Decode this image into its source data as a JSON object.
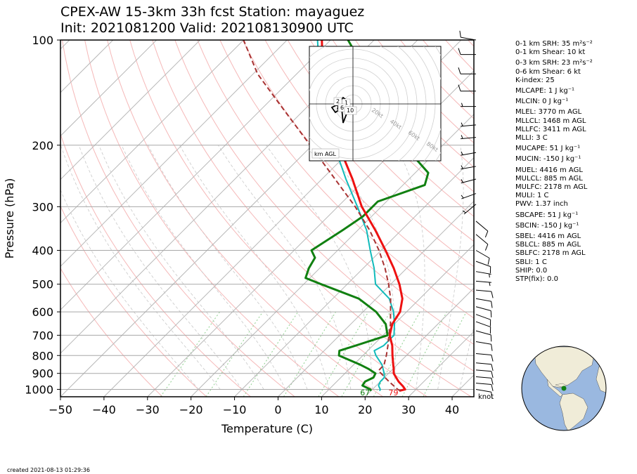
{
  "title_line1": "CPEX-AW 15-3km  33h fcst  Station: mayaguez",
  "title_line2": "Init: 2021081200  Valid: 202108130900 UTC",
  "created": "created 2021-08-13 01:29:36",
  "knot_label": "knot",
  "indices": [
    {
      "key": "srh01",
      "text": "0-1 km SRH: 35 m²s⁻²"
    },
    {
      "key": "shear01",
      "text": "0-1 km Shear: 10 kt"
    },
    {
      "key": "srh03",
      "text": "0-3 km SRH: 23 m²s⁻²",
      "gap": true
    },
    {
      "key": "shear06",
      "text": "0-6 km Shear: 6 kt"
    },
    {
      "key": "kindex",
      "text": "K-index: 25"
    },
    {
      "key": "mlcape",
      "text": "MLCAPE: 1 J kg⁻¹",
      "gap": true
    },
    {
      "key": "mlcin",
      "text": "MLCIN: 0 J kg⁻¹",
      "gap": true
    },
    {
      "key": "mlel",
      "text": "MLEL: 3770 m AGL",
      "gap": true
    },
    {
      "key": "mllcl",
      "text": "MLLCL: 1468 m AGL"
    },
    {
      "key": "mllfc",
      "text": "MLLFC: 3411 m AGL"
    },
    {
      "key": "mlli",
      "text": "MLLI: 3 C"
    },
    {
      "key": "mucape",
      "text": "MUCAPE: 51 J kg⁻¹",
      "gap": true
    },
    {
      "key": "mucin",
      "text": "MUCIN: -150 J kg⁻¹",
      "gap": true
    },
    {
      "key": "muel",
      "text": "MUEL: 4416 m AGL",
      "gap": true
    },
    {
      "key": "mulcl",
      "text": "MULCL: 885 m AGL"
    },
    {
      "key": "mulfc",
      "text": "MULFC: 2178 m AGL"
    },
    {
      "key": "muli",
      "text": "MULI: 1 C"
    },
    {
      "key": "pwv",
      "text": "PWV: 1.37 inch"
    },
    {
      "key": "sbcape",
      "text": "SBCAPE: 51 J kg⁻¹",
      "gap": true
    },
    {
      "key": "sbcin",
      "text": "SBCIN: -150 J kg⁻¹",
      "gap": true
    },
    {
      "key": "sbel",
      "text": "SBEL: 4416 m AGL",
      "gap": true
    },
    {
      "key": "sblcl",
      "text": "SBLCL: 885 m AGL"
    },
    {
      "key": "sblfc",
      "text": "SBLFC: 2178 m AGL"
    },
    {
      "key": "sbli",
      "text": "SBLI: 1 C"
    },
    {
      "key": "ship",
      "text": "SHIP: 0.0"
    },
    {
      "key": "stp",
      "text": "STP(fix): 0.0"
    }
  ],
  "colors": {
    "temperature": "#ee1111",
    "dewpoint": "#118011",
    "wetbulb": "#11bbbb",
    "parcel": "#a83232",
    "isobar": "#a8a8a8",
    "isotherm": "#b8b8b8",
    "dry_adiabat": "#f5b8b8",
    "moist_adiabat": "#c8c8c8",
    "mixing_ratio": "#8fd08f",
    "ocean": "#9ab8e0",
    "land": "#f0ecd8"
  },
  "chart_data": {
    "type": "line",
    "subtype": "skew-T log-p",
    "xlabel": "Temperature (C)",
    "ylabel": "Pressure (hPa)",
    "xlim": [
      -50,
      45
    ],
    "ylim": [
      1050,
      100
    ],
    "y_scale": "log",
    "x_ticks": [
      -50,
      -40,
      -30,
      -20,
      -10,
      0,
      10,
      20,
      30,
      40
    ],
    "x_tick_labels": [
      "−50",
      "−40",
      "−30",
      "−20",
      "−10",
      "0",
      "10",
      "20",
      "30",
      "40"
    ],
    "y_ticks": [
      100,
      200,
      300,
      400,
      500,
      600,
      700,
      800,
      900,
      1000
    ],
    "series": [
      {
        "key": "temperature",
        "points": [
          [
            1010,
            26.5
          ],
          [
            1000,
            27.5
          ],
          [
            980,
            26.3
          ],
          [
            950,
            24.2
          ],
          [
            925,
            22.7
          ],
          [
            900,
            21.2
          ],
          [
            870,
            20.0
          ],
          [
            850,
            19.1
          ],
          [
            800,
            16.8
          ],
          [
            750,
            14.5
          ],
          [
            700,
            11.5
          ],
          [
            650,
            9.5
          ],
          [
            600,
            8.5
          ],
          [
            550,
            6.0
          ],
          [
            500,
            2.0
          ],
          [
            450,
            -3.0
          ],
          [
            400,
            -9.0
          ],
          [
            350,
            -16.0
          ],
          [
            300,
            -24.5
          ],
          [
            250,
            -33.0
          ],
          [
            200,
            -44.0
          ],
          [
            175,
            -50.0
          ],
          [
            150,
            -57.0
          ],
          [
            125,
            -64.0
          ],
          [
            100,
            -72.0
          ]
        ]
      },
      {
        "key": "dewpoint",
        "points": [
          [
            1010,
            20.0
          ],
          [
            1000,
            19.5
          ],
          [
            975,
            16.8
          ],
          [
            950,
            16.5
          ],
          [
            925,
            17.5
          ],
          [
            900,
            17.0
          ],
          [
            875,
            14.5
          ],
          [
            850,
            11.5
          ],
          [
            800,
            4.5
          ],
          [
            775,
            3.5
          ],
          [
            750,
            6.0
          ],
          [
            700,
            11.0
          ],
          [
            650,
            8.0
          ],
          [
            600,
            3.0
          ],
          [
            550,
            -4.0
          ],
          [
            500,
            -16.0
          ],
          [
            480,
            -21.0
          ],
          [
            450,
            -22.5
          ],
          [
            420,
            -23.5
          ],
          [
            400,
            -26.0
          ],
          [
            350,
            -23.5
          ],
          [
            320,
            -22.0
          ],
          [
            290,
            -22.0
          ],
          [
            260,
            -15.0
          ],
          [
            240,
            -17.0
          ],
          [
            200,
            -29.0
          ],
          [
            180,
            -33.5
          ],
          [
            160,
            -38.0
          ],
          [
            150,
            -40.5
          ],
          [
            140,
            -44.0
          ],
          [
            130,
            -50.0
          ],
          [
            120,
            -56.0
          ],
          [
            100,
            -66.0
          ]
        ]
      },
      {
        "key": "wetbulb",
        "points": [
          [
            1010,
            22.0
          ],
          [
            1000,
            21.8
          ],
          [
            975,
            20.5
          ],
          [
            950,
            20.0
          ],
          [
            925,
            20.0
          ],
          [
            900,
            19.0
          ],
          [
            850,
            16.5
          ],
          [
            800,
            13.0
          ],
          [
            775,
            11.5
          ],
          [
            750,
            12.5
          ],
          [
            700,
            12.5
          ],
          [
            650,
            10.0
          ],
          [
            600,
            7.0
          ],
          [
            550,
            3.0
          ],
          [
            500,
            -3.5
          ],
          [
            450,
            -7.5
          ],
          [
            400,
            -12.5
          ],
          [
            350,
            -18.0
          ],
          [
            300,
            -25.5
          ],
          [
            250,
            -34.5
          ],
          [
            200,
            -45.0
          ],
          [
            150,
            -58.0
          ],
          [
            100,
            -73.0
          ]
        ]
      },
      {
        "key": "parcel",
        "points": [
          [
            1010,
            26.8
          ],
          [
            1000,
            25.8
          ],
          [
            950,
            22.0
          ],
          [
            900,
            18.3
          ],
          [
            885,
            17.1
          ],
          [
            850,
            17.0
          ],
          [
            800,
            15.4
          ],
          [
            750,
            13.5
          ],
          [
            700,
            11.3
          ],
          [
            650,
            9.1
          ],
          [
            600,
            6.3
          ],
          [
            550,
            3.3
          ],
          [
            500,
            -0.5
          ],
          [
            450,
            -5.0
          ],
          [
            400,
            -10.5
          ],
          [
            350,
            -17.3
          ],
          [
            300,
            -26.0
          ],
          [
            250,
            -37.0
          ],
          [
            200,
            -50.5
          ],
          [
            150,
            -68.0
          ],
          [
            125,
            -79.0
          ],
          [
            100,
            -90.0
          ]
        ]
      }
    ],
    "surface_labels": [
      {
        "key": "dewpoint",
        "text": "67",
        "t": 20.0
      },
      {
        "key": "temperature",
        "text": "79",
        "t": 26.5
      }
    ],
    "wind_barbs": [
      {
        "p": 100,
        "speed": 10,
        "dir": 280
      },
      {
        "p": 110,
        "speed": 10,
        "dir": 270
      },
      {
        "p": 125,
        "speed": 10,
        "dir": 270
      },
      {
        "p": 140,
        "speed": 10,
        "dir": 270
      },
      {
        "p": 155,
        "speed": 5,
        "dir": 270
      },
      {
        "p": 175,
        "speed": 5,
        "dir": 265
      },
      {
        "p": 190,
        "speed": 5,
        "dir": 265
      },
      {
        "p": 210,
        "speed": 5,
        "dir": 260
      },
      {
        "p": 230,
        "speed": 5,
        "dir": 260
      },
      {
        "p": 250,
        "speed": 5,
        "dir": 255
      },
      {
        "p": 275,
        "speed": 5,
        "dir": 250
      },
      {
        "p": 295,
        "speed": 5,
        "dir": 230
      },
      {
        "p": 330,
        "speed": 10,
        "dir": 130
      },
      {
        "p": 360,
        "speed": 10,
        "dir": 130
      },
      {
        "p": 400,
        "speed": 10,
        "dir": 120
      },
      {
        "p": 430,
        "speed": 10,
        "dir": 110
      },
      {
        "p": 460,
        "speed": 5,
        "dir": 100
      },
      {
        "p": 490,
        "speed": 5,
        "dir": 95
      },
      {
        "p": 520,
        "speed": 10,
        "dir": 95
      },
      {
        "p": 550,
        "speed": 10,
        "dir": 100
      },
      {
        "p": 580,
        "speed": 10,
        "dir": 105
      },
      {
        "p": 610,
        "speed": 10,
        "dir": 110
      },
      {
        "p": 640,
        "speed": 10,
        "dir": 110
      },
      {
        "p": 680,
        "speed": 10,
        "dir": 105
      },
      {
        "p": 730,
        "speed": 10,
        "dir": 100
      },
      {
        "p": 790,
        "speed": 10,
        "dir": 95
      },
      {
        "p": 840,
        "speed": 10,
        "dir": 95
      },
      {
        "p": 880,
        "speed": 10,
        "dir": 95
      },
      {
        "p": 920,
        "speed": 10,
        "dir": 95
      },
      {
        "p": 960,
        "speed": 10,
        "dir": 95
      },
      {
        "p": 1000,
        "speed": 10,
        "dir": 100
      }
    ],
    "hodograph": {
      "ring_labels": [
        "20kt",
        "40kt",
        "60kt",
        "80kt"
      ],
      "height_labels": [
        "2",
        "1",
        "6",
        "10"
      ],
      "legend": "km AGL"
    },
    "globe": {
      "marker": "station"
    }
  }
}
